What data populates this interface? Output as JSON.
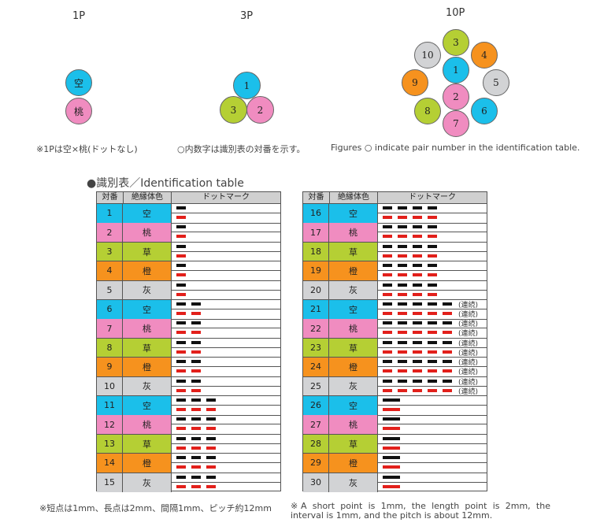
{
  "diagrams": {
    "p1_title": "1P",
    "p3_title": "3P",
    "p10_title": "10P",
    "p1_labels": [
      "空",
      "桃"
    ],
    "p3_labels": [
      "1",
      "3",
      "2"
    ],
    "p10_labels": [
      "3",
      "10",
      "4",
      "1",
      "9",
      "5",
      "2",
      "8",
      "6",
      "7"
    ],
    "caption_1p": "※1Pは空×桃(ドットなし)",
    "caption_3p": "○内数字は識別表の対番を示す。",
    "caption_10p": "Figures ○ indicate pair number in the identification table."
  },
  "table": {
    "title": "●識別表／Identification table",
    "header": {
      "pair": "対番",
      "color": "絶縁体色",
      "dots": "ドットマーク"
    },
    "continuous_label": "(連続)",
    "left_rows": [
      {
        "num": "1",
        "color": "空"
      },
      {
        "num": "2",
        "color": "桃"
      },
      {
        "num": "3",
        "color": "草"
      },
      {
        "num": "4",
        "color": "橙"
      },
      {
        "num": "5",
        "color": "灰"
      },
      {
        "num": "6",
        "color": "空"
      },
      {
        "num": "7",
        "color": "桃"
      },
      {
        "num": "8",
        "color": "草"
      },
      {
        "num": "9",
        "color": "橙"
      },
      {
        "num": "10",
        "color": "灰"
      },
      {
        "num": "11",
        "color": "空"
      },
      {
        "num": "12",
        "color": "桃"
      },
      {
        "num": "13",
        "color": "草"
      },
      {
        "num": "14",
        "color": "橙"
      },
      {
        "num": "15",
        "color": "灰"
      }
    ],
    "right_rows": [
      {
        "num": "16",
        "color": "空"
      },
      {
        "num": "17",
        "color": "桃"
      },
      {
        "num": "18",
        "color": "草"
      },
      {
        "num": "19",
        "color": "橙"
      },
      {
        "num": "20",
        "color": "灰"
      },
      {
        "num": "21",
        "color": "空"
      },
      {
        "num": "22",
        "color": "桃"
      },
      {
        "num": "23",
        "color": "草"
      },
      {
        "num": "24",
        "color": "橙"
      },
      {
        "num": "25",
        "color": "灰"
      },
      {
        "num": "26",
        "color": "空"
      },
      {
        "num": "27",
        "color": "桃"
      },
      {
        "num": "28",
        "color": "草"
      },
      {
        "num": "29",
        "color": "橙"
      },
      {
        "num": "30",
        "color": "灰"
      }
    ]
  },
  "colors": {
    "空": "#1bbfea",
    "桃": "#f08cc0",
    "草": "#b5cf34",
    "橙": "#f6921e",
    "灰": "#d2d3d5",
    "dot_black": "#111111",
    "dot_red": "#e2201b"
  },
  "notes": {
    "jp": "※短点は1mm、長点は2mm、間隔1mm、ピッチ約12mm",
    "en": "※A short point is 1mm, the length point is 2mm, the interval is 1mm, and the pitch is about 12mm."
  }
}
